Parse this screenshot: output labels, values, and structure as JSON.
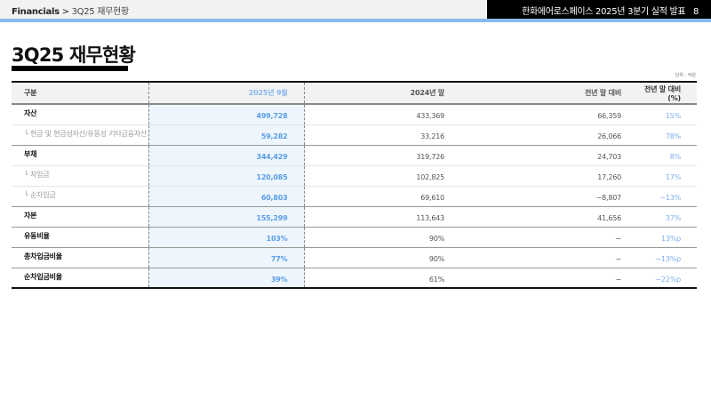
{
  "header": {
    "breadcrumb_root": "Financials",
    "breadcrumb_sep": ">",
    "breadcrumb_page": "3Q25 재무현황",
    "right_title": "한화에어로스페이스 2025년 3분기 실적 발표",
    "page_number": "8"
  },
  "title": "3Q25 재무현황",
  "unit": "단위 : 억원",
  "table": {
    "columns": [
      "구분",
      "2025년 9월",
      "2024년 말",
      "전년 말 대비",
      "전년 말 대비 (%)"
    ],
    "rows": [
      {
        "label": "자산",
        "sub": false,
        "values": [
          "499,728",
          "433,369",
          "66,359",
          "15%"
        ]
      },
      {
        "label": "└ 현금 및 현금성자산/유동성 기타금융자산",
        "sub": true,
        "values": [
          "59,282",
          "33,216",
          "26,066",
          "78%"
        ]
      },
      {
        "label": "부채",
        "sub": false,
        "values": [
          "344,429",
          "319,726",
          "24,703",
          "8%"
        ]
      },
      {
        "label": "└ 차입금",
        "sub": true,
        "values": [
          "120,085",
          "102,825",
          "17,260",
          "17%"
        ]
      },
      {
        "label": "└ 순차입금",
        "sub": true,
        "values": [
          "60,803",
          "69,610",
          "−8,807",
          "−13%"
        ]
      },
      {
        "label": "자본",
        "sub": false,
        "values": [
          "155,299",
          "113,643",
          "41,656",
          "37%"
        ]
      },
      {
        "label": "유동비율",
        "sub": false,
        "values": [
          "103%",
          "90%",
          "−",
          "13%p"
        ]
      },
      {
        "label": "총차입금비율",
        "sub": false,
        "values": [
          "77%",
          "90%",
          "−",
          "−13%p"
        ]
      },
      {
        "label": "순차입금비율",
        "sub": false,
        "values": [
          "39%",
          "61%",
          "−",
          "−22%p"
        ]
      }
    ]
  },
  "colors": {
    "accent": "#8ab8f0",
    "highlight": "#5a9ee8"
  }
}
